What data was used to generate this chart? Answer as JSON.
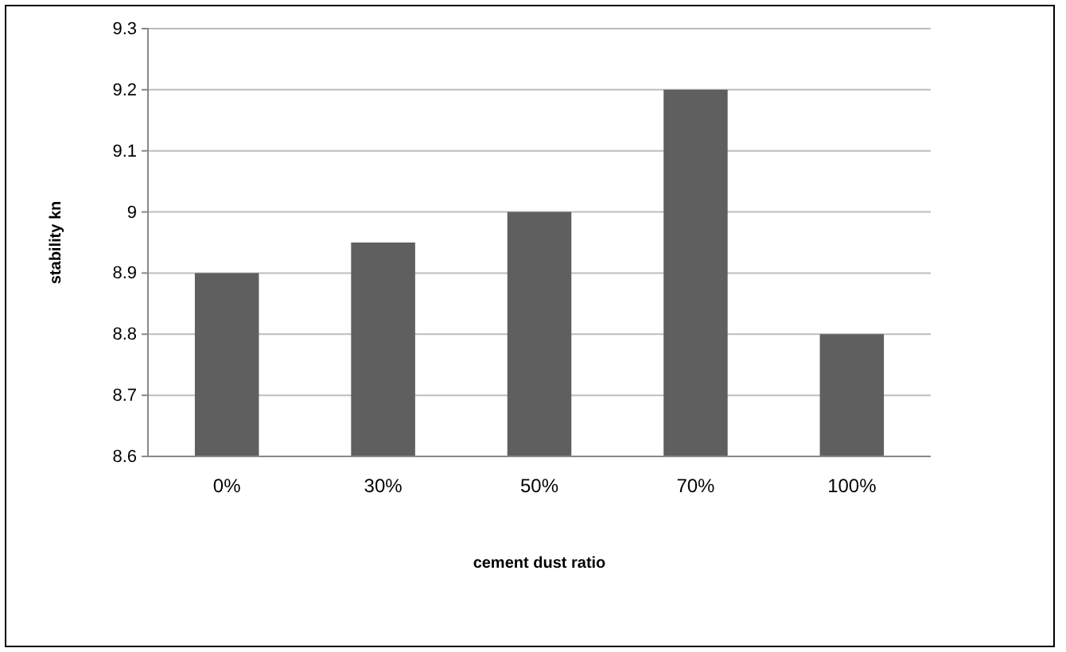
{
  "chart_data": {
    "type": "bar",
    "xlabel": "cement dust ratio",
    "ylabel": "stability kn",
    "categories": [
      "0%",
      "30%",
      "50%",
      "70%",
      "100%"
    ],
    "values": [
      8.9,
      8.95,
      9.0,
      9.2,
      8.8
    ],
    "color": "#5f5f5f",
    "ylim": [
      8.6,
      9.3
    ],
    "yticks": [
      8.6,
      8.7,
      8.8,
      8.9,
      9,
      9.1,
      9.2,
      9.3
    ],
    "grid": "y"
  }
}
